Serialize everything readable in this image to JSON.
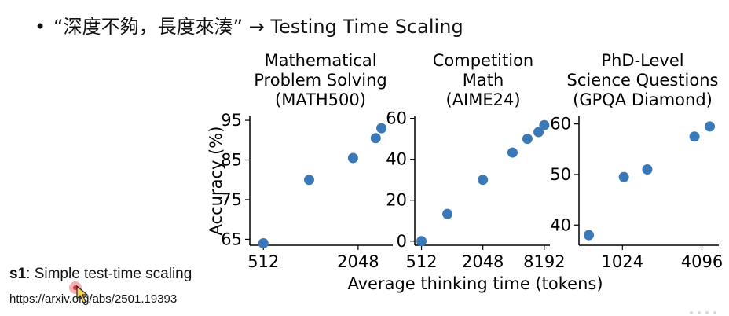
{
  "slide": {
    "bullet": "•",
    "title": "“深度不夠，長度來湊” → Testing Time Scaling"
  },
  "reference": {
    "name": "s1",
    "description": ": Simple test-time scaling",
    "url": "https://arxiv.org/abs/2501.19393"
  },
  "colors": {
    "point": "#3a78b8",
    "axis": "#000000"
  },
  "chart_data": [
    {
      "type": "scatter",
      "title": "Mathematical\nProblem Solving\n(MATH500)",
      "ylabel": "Accuracy (%)",
      "xscale": "log2",
      "xlim": [
        420,
        3400
      ],
      "ylim": [
        63.5,
        96
      ],
      "xticks": [
        512,
        2048
      ],
      "yticks": [
        65,
        75,
        85,
        95
      ],
      "x": [
        512,
        1000,
        1900,
        2650,
        2880
      ],
      "y": [
        64,
        80,
        85.5,
        90.5,
        93
      ]
    },
    {
      "type": "scatter",
      "title": "Competition\nMath\n(AIME24)",
      "xscale": "log2",
      "xlim": [
        440,
        9300
      ],
      "ylim": [
        -2,
        61
      ],
      "xticks": [
        512,
        2048,
        8192
      ],
      "yticks": [
        0,
        20,
        40,
        60
      ],
      "x": [
        512,
        920,
        2048,
        4000,
        5600,
        7200,
        8192
      ],
      "y": [
        0,
        13.3,
        30,
        43.3,
        50,
        53.3,
        56.7
      ]
    },
    {
      "type": "scatter",
      "title": "PhD-Level\nScience Questions\n(GPQA Diamond)",
      "xscale": "log2",
      "xlim": [
        480,
        5500
      ],
      "ylim": [
        36,
        61.5
      ],
      "xticks": [
        1024,
        4096
      ],
      "yticks": [
        40,
        50,
        60
      ],
      "x": [
        570,
        1050,
        1580,
        3600,
        4700
      ],
      "y": [
        38,
        49.5,
        51,
        57.5,
        59.5
      ]
    }
  ],
  "shared_xlabel": "Average thinking time (tokens)"
}
